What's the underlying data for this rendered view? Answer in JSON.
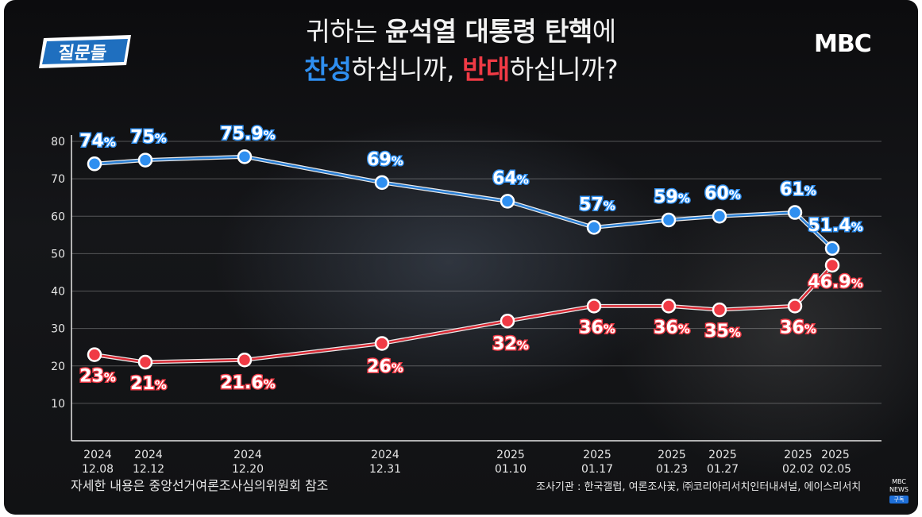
{
  "header": {
    "title_line1_prefix": "귀하는 ",
    "title_line1_bold": "윤석열 대통령 탄핵",
    "title_line1_suffix": "에",
    "title_line2_blue": "찬성",
    "title_line2_mid": "하십니까, ",
    "title_line2_red": "반대",
    "title_line2_suffix": "하십니까?"
  },
  "logos": {
    "left_text": "질문들",
    "right_text": "MBC"
  },
  "footer": {
    "left_note": "자세한 내용은 중앙선거여론조사심의위원회 참조",
    "right_note": "조사기관 : 한국갤럽, 여론조사꽃, ㈜코리아리서치인터내셔널, 에이스리서치",
    "badge_line1": "MBC",
    "badge_line2": "NEWS",
    "badge_sub": "구독"
  },
  "colors": {
    "support": "#2f8ff0",
    "oppose": "#f03a45",
    "support_line": "#2a7fd4",
    "oppose_line": "#d82a35"
  },
  "chart_data": {
    "type": "line",
    "title": "",
    "xlabel": "",
    "ylabel": "",
    "ylim": [
      0,
      80
    ],
    "yticks": [
      10,
      20,
      30,
      40,
      50,
      60,
      70,
      80
    ],
    "grid": true,
    "x": [
      {
        "year": "2024",
        "date": "12.08"
      },
      {
        "year": "2024",
        "date": "12.12"
      },
      {
        "year": "2024",
        "date": "12.20"
      },
      {
        "year": "2024",
        "date": "12.31"
      },
      {
        "year": "2025",
        "date": "01.10"
      },
      {
        "year": "2025",
        "date": "01.17"
      },
      {
        "year": "2025",
        "date": "01.23"
      },
      {
        "year": "2025",
        "date": "01.27"
      },
      {
        "year": "2025",
        "date": "02.02"
      },
      {
        "year": "2025",
        "date": "02.05"
      }
    ],
    "series": [
      {
        "key": "support",
        "values": [
          74,
          75,
          75.9,
          69,
          64,
          57,
          59,
          60,
          61,
          51.4
        ],
        "labels": [
          "74",
          "75",
          "75.9",
          "69",
          "64",
          "57",
          "59",
          "60",
          "61",
          "51.4"
        ]
      },
      {
        "key": "oppose",
        "values": [
          23,
          21,
          21.6,
          26,
          32,
          36,
          36,
          35,
          36,
          46.9
        ],
        "labels": [
          "23",
          "21",
          "21.6",
          "26",
          "32",
          "36",
          "36",
          "35",
          "36",
          "46.9"
        ]
      }
    ],
    "unit_suffix": "%"
  }
}
